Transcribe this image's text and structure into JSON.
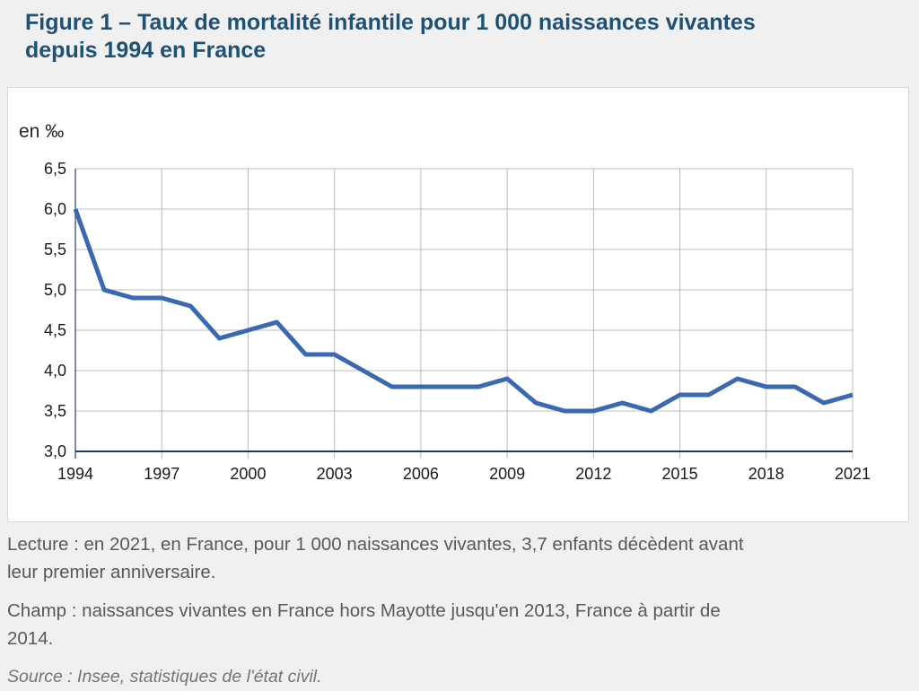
{
  "figure": {
    "title_lines": [
      "Figure 1 – Taux de mortalité infantile pour 1 000 naissances vivantes",
      "depuis 1994 en France"
    ]
  },
  "chart_data": {
    "type": "line",
    "title": "Figure 1 – Taux de mortalité infantile pour 1 000 naissances vivantes depuis 1994 en France",
    "ylabel": "en ‰",
    "xlabel": "",
    "x": [
      1994,
      1995,
      1996,
      1997,
      1998,
      1999,
      2000,
      2001,
      2002,
      2003,
      2004,
      2005,
      2006,
      2007,
      2008,
      2009,
      2010,
      2011,
      2012,
      2013,
      2014,
      2015,
      2016,
      2017,
      2018,
      2019,
      2020,
      2021
    ],
    "series": [
      {
        "name": "Taux de mortalité infantile",
        "values": [
          6.0,
          5.0,
          4.9,
          4.9,
          4.8,
          4.4,
          4.5,
          4.6,
          4.2,
          4.2,
          4.0,
          3.8,
          3.8,
          3.8,
          3.8,
          3.9,
          3.6,
          3.5,
          3.5,
          3.6,
          3.5,
          3.7,
          3.7,
          3.9,
          3.8,
          3.8,
          3.6,
          3.7
        ]
      }
    ],
    "ylim": [
      3.0,
      6.5
    ],
    "ytick_values": [
      3.0,
      3.5,
      4.0,
      4.5,
      5.0,
      5.5,
      6.0,
      6.5
    ],
    "ytick_labels": [
      "3,0",
      "3,5",
      "4,0",
      "4,5",
      "5,0",
      "5,5",
      "6,0",
      "6,5"
    ],
    "xticks": [
      1994,
      1997,
      2000,
      2003,
      2006,
      2009,
      2012,
      2015,
      2018,
      2021
    ],
    "grid": true,
    "legend": "none",
    "colors": {
      "line": "#3a68b1",
      "grid": "#bdbdbd",
      "x_axis": "#1f3864",
      "y_axis": "#55608a",
      "title": "#1f5172"
    }
  },
  "notes": {
    "lecture_lines": [
      "Lecture : en 2021, en France, pour 1 000 naissances vivantes, 3,7 enfants décèdent avant",
      "leur premier anniversaire."
    ],
    "champ_lines": [
      "Champ : naissances vivantes en France hors Mayotte jusqu'en 2013, France à partir de",
      "2014."
    ],
    "source": "Source : Insee, statistiques de l'état civil."
  }
}
